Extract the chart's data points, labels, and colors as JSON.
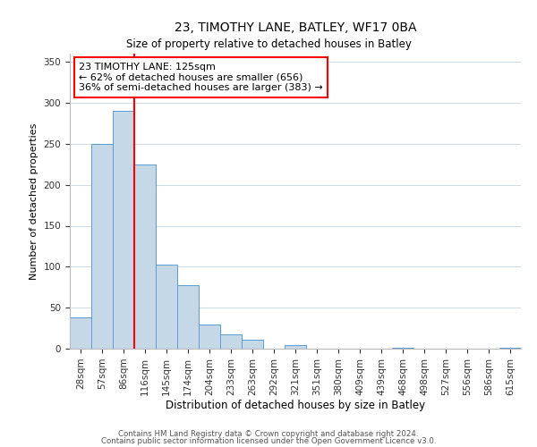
{
  "title": "23, TIMOTHY LANE, BATLEY, WF17 0BA",
  "subtitle": "Size of property relative to detached houses in Batley",
  "xlabel": "Distribution of detached houses by size in Batley",
  "ylabel": "Number of detached properties",
  "bar_color": "#c5d8e8",
  "bar_edge_color": "#5b9bd5",
  "bin_labels": [
    "28sqm",
    "57sqm",
    "86sqm",
    "116sqm",
    "145sqm",
    "174sqm",
    "204sqm",
    "233sqm",
    "263sqm",
    "292sqm",
    "321sqm",
    "351sqm",
    "380sqm",
    "409sqm",
    "439sqm",
    "468sqm",
    "498sqm",
    "527sqm",
    "556sqm",
    "586sqm",
    "615sqm"
  ],
  "bin_values": [
    38,
    250,
    290,
    225,
    103,
    77,
    29,
    18,
    11,
    0,
    4,
    0,
    0,
    0,
    0,
    1,
    0,
    0,
    0,
    0,
    1
  ],
  "property_line_bin_index": 3,
  "ylim": [
    0,
    360
  ],
  "yticks": [
    0,
    50,
    100,
    150,
    200,
    250,
    300,
    350
  ],
  "annotation_title": "23 TIMOTHY LANE: 125sqm",
  "annotation_line1": "← 62% of detached houses are smaller (656)",
  "annotation_line2": "36% of semi-detached houses are larger (383) →",
  "footnote1": "Contains HM Land Registry data © Crown copyright and database right 2024.",
  "footnote2": "Contains public sector information licensed under the Open Government Licence v3.0.",
  "background_color": "#ffffff",
  "grid_color": "#d0dce8"
}
